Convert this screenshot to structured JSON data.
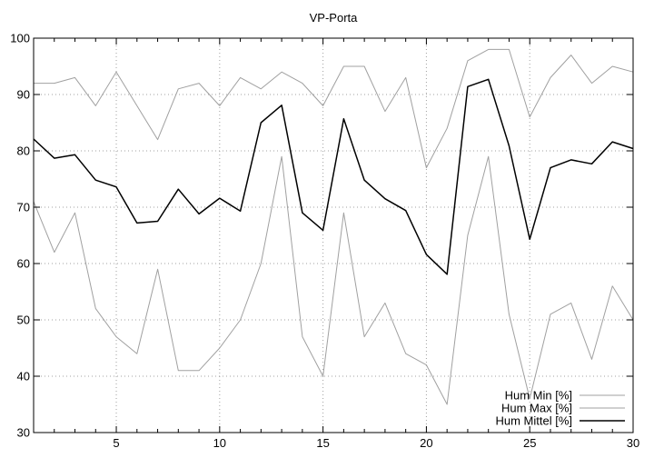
{
  "chart_data": {
    "type": "line",
    "title": "VP-Porta",
    "xlabel": "",
    "ylabel": "",
    "xlim": [
      1,
      30
    ],
    "ylim": [
      30,
      100
    ],
    "xticks": [
      5,
      10,
      15,
      20,
      25,
      30
    ],
    "yticks": [
      30,
      40,
      50,
      60,
      70,
      80,
      90,
      100
    ],
    "grid": true,
    "legend_position": "bottom-right",
    "x": [
      1,
      2,
      3,
      4,
      5,
      6,
      7,
      8,
      9,
      10,
      11,
      12,
      13,
      14,
      15,
      16,
      17,
      18,
      19,
      20,
      21,
      22,
      23,
      24,
      25,
      26,
      27,
      28,
      29,
      30
    ],
    "series": [
      {
        "name": "Hum Min [%]",
        "color": "#a0a0a0",
        "values": [
          71,
          62,
          69,
          52,
          47,
          44,
          59,
          41,
          41,
          45,
          50,
          60,
          79,
          47,
          40,
          69,
          47,
          53,
          44,
          42,
          35,
          65,
          79,
          51,
          36,
          51,
          53,
          43,
          56,
          50
        ]
      },
      {
        "name": "Hum Max [%]",
        "color": "#a0a0a0",
        "values": [
          92,
          92,
          93,
          88,
          94,
          88,
          82,
          91,
          92,
          88,
          93,
          91,
          94,
          92,
          88,
          95,
          95,
          87,
          93,
          77,
          84,
          96,
          98,
          98,
          86,
          93,
          97,
          92,
          95,
          94
        ]
      },
      {
        "name": "Hum Mittel [%]",
        "color": "#000000",
        "values": [
          82.1,
          78.7,
          79.3,
          74.8,
          73.6,
          67.2,
          67.5,
          73.2,
          68.8,
          71.6,
          69.3,
          85.0,
          88.1,
          69.0,
          65.9,
          85.7,
          74.8,
          71.5,
          69.4,
          61.6,
          58.1,
          91.4,
          92.7,
          80.9,
          64.3,
          77.0,
          78.4,
          77.7,
          81.6,
          80.4
        ]
      }
    ]
  }
}
